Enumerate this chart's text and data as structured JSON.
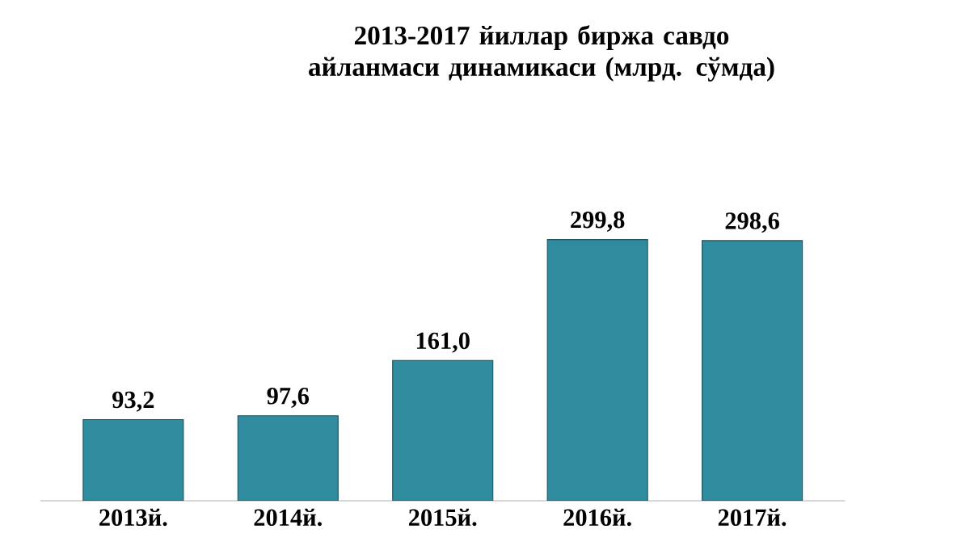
{
  "chart_data": {
    "type": "bar",
    "title": "2013-2017 йиллар биржа савдо айланмаси динамикаси (млрд. сўмда)",
    "categories": [
      "2013й.",
      "2014й.",
      "2015й.",
      "2016й.",
      "2017й."
    ],
    "values": [
      93.2,
      97.6,
      161.0,
      299.8,
      298.6
    ],
    "value_labels": [
      "93,2",
      "97,6",
      "161,0",
      "299,8",
      "298,6"
    ],
    "color": "#2f8b9e"
  }
}
